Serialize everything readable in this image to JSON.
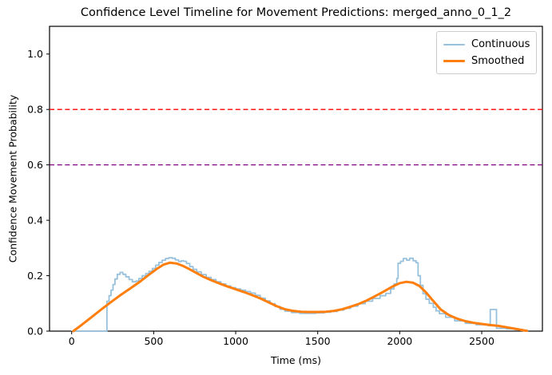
{
  "chart_data": {
    "type": "line",
    "title": "Confidence Level Timeline for Movement Predictions: merged_anno_0_1_2",
    "xlabel": "Time (ms)",
    "ylabel": "Confidence Movement Probability",
    "xlim": [
      -135,
      2870
    ],
    "ylim": [
      0,
      1.1
    ],
    "x_ticks": [
      0,
      500,
      1000,
      1500,
      2000,
      2500
    ],
    "y_ticks": [
      "0.0",
      "0.2",
      "0.4",
      "0.6",
      "0.8",
      "1.0"
    ],
    "grid": false,
    "legend_position": "upper right",
    "frame_color": "#000000",
    "thresholds": [
      {
        "value": 0.8,
        "color": "#ff0000",
        "style": "dashed"
      },
      {
        "value": 0.6,
        "color": "#800080",
        "style": "dashed"
      }
    ],
    "series": [
      {
        "name": "Continuous",
        "color": "#97c1dc",
        "width": 1.8,
        "step": true,
        "points": [
          [
            0,
            0
          ],
          [
            215,
            0
          ],
          [
            215,
            0.108
          ],
          [
            228,
            0.128
          ],
          [
            240,
            0.148
          ],
          [
            252,
            0.168
          ],
          [
            264,
            0.188
          ],
          [
            278,
            0.205
          ],
          [
            295,
            0.212
          ],
          [
            312,
            0.205
          ],
          [
            330,
            0.196
          ],
          [
            350,
            0.186
          ],
          [
            370,
            0.178
          ],
          [
            392,
            0.181
          ],
          [
            410,
            0.19
          ],
          [
            430,
            0.2
          ],
          [
            452,
            0.208
          ],
          [
            472,
            0.216
          ],
          [
            492,
            0.226
          ],
          [
            512,
            0.238
          ],
          [
            532,
            0.248
          ],
          [
            552,
            0.256
          ],
          [
            572,
            0.262
          ],
          [
            592,
            0.265
          ],
          [
            612,
            0.263
          ],
          [
            632,
            0.257
          ],
          [
            652,
            0.251
          ],
          [
            668,
            0.254
          ],
          [
            682,
            0.252
          ],
          [
            700,
            0.244
          ],
          [
            720,
            0.233
          ],
          [
            740,
            0.223
          ],
          [
            762,
            0.214
          ],
          [
            790,
            0.204
          ],
          [
            820,
            0.194
          ],
          [
            850,
            0.186
          ],
          [
            880,
            0.178
          ],
          [
            910,
            0.17
          ],
          [
            940,
            0.163
          ],
          [
            970,
            0.157
          ],
          [
            1000,
            0.152
          ],
          [
            1030,
            0.148
          ],
          [
            1060,
            0.143
          ],
          [
            1090,
            0.137
          ],
          [
            1120,
            0.129
          ],
          [
            1150,
            0.119
          ],
          [
            1180,
            0.109
          ],
          [
            1210,
            0.099
          ],
          [
            1240,
            0.089
          ],
          [
            1270,
            0.079
          ],
          [
            1300,
            0.072
          ],
          [
            1340,
            0.067
          ],
          [
            1390,
            0.064
          ],
          [
            1440,
            0.064
          ],
          [
            1490,
            0.066
          ],
          [
            1540,
            0.068
          ],
          [
            1580,
            0.071
          ],
          [
            1620,
            0.076
          ],
          [
            1660,
            0.082
          ],
          [
            1700,
            0.09
          ],
          [
            1745,
            0.099
          ],
          [
            1790,
            0.108
          ],
          [
            1835,
            0.118
          ],
          [
            1880,
            0.128
          ],
          [
            1915,
            0.136
          ],
          [
            1945,
            0.152
          ],
          [
            1965,
            0.17
          ],
          [
            1982,
            0.19
          ],
          [
            1990,
            0.245
          ],
          [
            2005,
            0.252
          ],
          [
            2022,
            0.262
          ],
          [
            2042,
            0.256
          ],
          [
            2060,
            0.263
          ],
          [
            2082,
            0.254
          ],
          [
            2100,
            0.247
          ],
          [
            2112,
            0.2
          ],
          [
            2126,
            0.165
          ],
          [
            2142,
            0.135
          ],
          [
            2160,
            0.115
          ],
          [
            2180,
            0.1
          ],
          [
            2205,
            0.086
          ],
          [
            2222,
            0.073
          ],
          [
            2242,
            0.063
          ],
          [
            2280,
            0.05
          ],
          [
            2335,
            0.037
          ],
          [
            2400,
            0.028
          ],
          [
            2465,
            0.023
          ],
          [
            2538,
            0.02
          ],
          [
            2552,
            0.078
          ],
          [
            2585,
            0.078
          ],
          [
            2590,
            0.01
          ],
          [
            2650,
            0.008
          ],
          [
            2700,
            0.006
          ],
          [
            2750,
            0.003
          ],
          [
            2780,
            0.001
          ]
        ]
      },
      {
        "name": "Smoothed",
        "color": "#ff7f0e",
        "width": 3,
        "step": false,
        "points": [
          [
            10,
            0
          ],
          [
            60,
            0.022
          ],
          [
            120,
            0.05
          ],
          [
            180,
            0.078
          ],
          [
            240,
            0.105
          ],
          [
            300,
            0.131
          ],
          [
            360,
            0.155
          ],
          [
            420,
            0.18
          ],
          [
            470,
            0.203
          ],
          [
            520,
            0.225
          ],
          [
            560,
            0.24
          ],
          [
            600,
            0.247
          ],
          [
            640,
            0.244
          ],
          [
            680,
            0.235
          ],
          [
            720,
            0.223
          ],
          [
            760,
            0.21
          ],
          [
            800,
            0.197
          ],
          [
            850,
            0.184
          ],
          [
            900,
            0.172
          ],
          [
            950,
            0.161
          ],
          [
            1000,
            0.151
          ],
          [
            1050,
            0.141
          ],
          [
            1100,
            0.13
          ],
          [
            1150,
            0.118
          ],
          [
            1200,
            0.104
          ],
          [
            1250,
            0.09
          ],
          [
            1300,
            0.079
          ],
          [
            1350,
            0.073
          ],
          [
            1400,
            0.07
          ],
          [
            1450,
            0.069
          ],
          [
            1500,
            0.069
          ],
          [
            1550,
            0.07
          ],
          [
            1600,
            0.073
          ],
          [
            1650,
            0.079
          ],
          [
            1700,
            0.088
          ],
          [
            1750,
            0.098
          ],
          [
            1800,
            0.111
          ],
          [
            1850,
            0.126
          ],
          [
            1900,
            0.142
          ],
          [
            1950,
            0.159
          ],
          [
            2000,
            0.173
          ],
          [
            2040,
            0.178
          ],
          [
            2080,
            0.175
          ],
          [
            2120,
            0.163
          ],
          [
            2160,
            0.14
          ],
          [
            2200,
            0.112
          ],
          [
            2250,
            0.078
          ],
          [
            2300,
            0.058
          ],
          [
            2350,
            0.045
          ],
          [
            2400,
            0.036
          ],
          [
            2450,
            0.03
          ],
          [
            2500,
            0.026
          ],
          [
            2550,
            0.022
          ],
          [
            2600,
            0.019
          ],
          [
            2650,
            0.014
          ],
          [
            2700,
            0.009
          ],
          [
            2745,
            0.004
          ],
          [
            2775,
            0.001
          ]
        ]
      }
    ]
  },
  "legend": {
    "items": [
      {
        "label": "Continuous",
        "color": "#97c1dc",
        "thickness": 2
      },
      {
        "label": "Smoothed",
        "color": "#ff7f0e",
        "thickness": 3
      }
    ]
  }
}
